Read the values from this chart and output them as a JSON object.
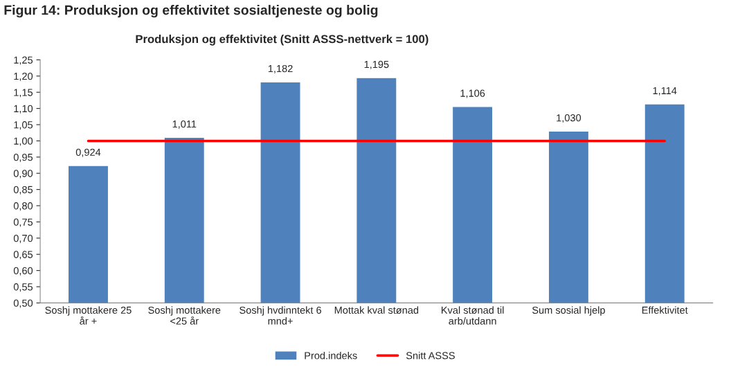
{
  "chart_data": {
    "type": "bar",
    "title": "Produksjon og effektivitet (Snitt ASSS-nettverk = 100)",
    "annotations": [
      "Figur 14: Produksjon og effektivitet sosialtjeneste og bolig"
    ],
    "categories": [
      "Soshj mottakere 25\når +",
      "Soshj mottakere\n<25 år",
      "Soshj hvdinntekt 6\nmnd+",
      "Mottak kval stønad",
      "Kval stønad til\narb/utdann",
      "Sum sosial hjelp",
      "Effektivitet"
    ],
    "series": [
      {
        "name": "Prod.indeks",
        "color": "#4f81bd",
        "values": [
          0.924,
          1.011,
          1.182,
          1.195,
          1.106,
          1.03,
          1.114
        ],
        "value_labels": [
          "0,924",
          "1,011",
          "1,182",
          "1,195",
          "1,106",
          "1,030",
          "1,114"
        ]
      },
      {
        "name": "Snitt ASSS",
        "type": "line",
        "color": "#ff0000",
        "values": [
          1.0,
          1.0,
          1.0,
          1.0,
          1.0,
          1.0,
          1.0
        ]
      }
    ],
    "ylim": [
      0.5,
      1.25
    ],
    "yticks": [
      {
        "value": 0.5,
        "label": "0,50"
      },
      {
        "value": 0.55,
        "label": "0,55"
      },
      {
        "value": 0.6,
        "label": "0,60"
      },
      {
        "value": 0.65,
        "label": "0,65"
      },
      {
        "value": 0.7,
        "label": "0,70"
      },
      {
        "value": 0.75,
        "label": "0,75"
      },
      {
        "value": 0.8,
        "label": "0,80"
      },
      {
        "value": 0.85,
        "label": "0,85"
      },
      {
        "value": 0.9,
        "label": "0,90"
      },
      {
        "value": 0.95,
        "label": "0,95"
      },
      {
        "value": 1.0,
        "label": "1,00"
      },
      {
        "value": 1.05,
        "label": "1,05"
      },
      {
        "value": 1.1,
        "label": "1,10"
      },
      {
        "value": 1.15,
        "label": "1,15"
      },
      {
        "value": 1.2,
        "label": "1,20"
      },
      {
        "value": 1.25,
        "label": "1,25"
      }
    ],
    "grid": false,
    "legend": "bottom",
    "marker": "none",
    "line_style": "solid"
  }
}
